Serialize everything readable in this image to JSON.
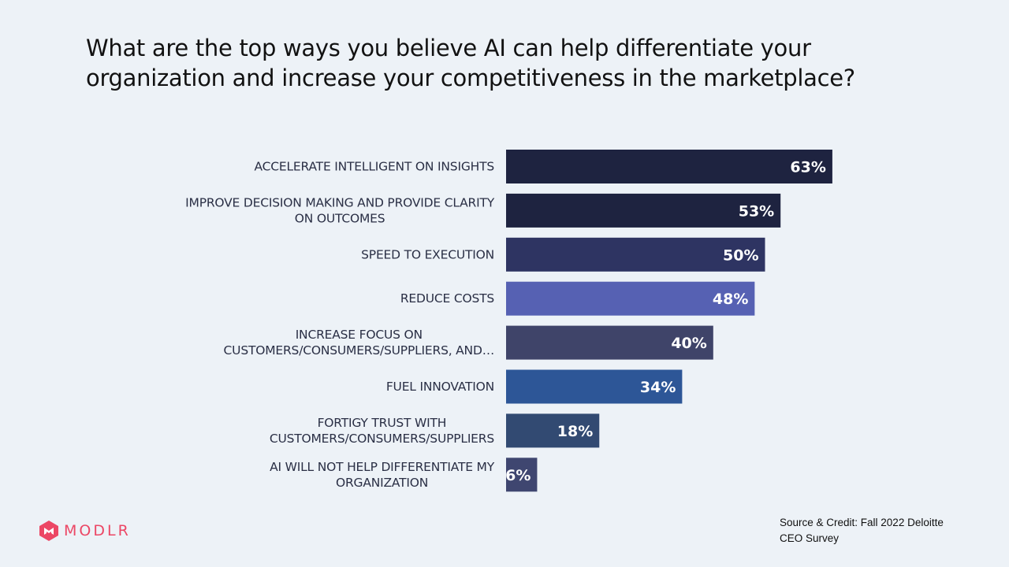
{
  "title_lines": [
    "What are the top ways you believe AI can help differentiate your",
    "organization and increase your competitiveness in the marketplace?"
  ],
  "brand": {
    "name": "MODLR",
    "color": "#ec4765"
  },
  "source_lines": [
    "Source & Credit:  Fall 2022 Deloitte",
    "CEO Survey"
  ],
  "chart_data": {
    "type": "bar",
    "orientation": "horizontal",
    "categories": [
      [
        "ACCELERATE INTELLIGENT ON INSIGHTS"
      ],
      [
        "IMPROVE DECISION MAKING AND PROVIDE CLARITY",
        "ON OUTCOMES"
      ],
      [
        "SPEED TO EXECUTION"
      ],
      [
        "REDUCE COSTS"
      ],
      [
        "INCREASE FOCUS ON",
        "CUSTOMERS/CONSUMERS/SUPPLIERS, AND…"
      ],
      [
        "FUEL INNOVATION"
      ],
      [
        "FORTIGY TRUST WITH",
        "CUSTOMERS/CONSUMERS/SUPPLIERS"
      ],
      [
        "AI WILL NOT HELP DIFFERENTIATE MY",
        "ORGANIZATION"
      ]
    ],
    "values": [
      63,
      53,
      50,
      48,
      40,
      34,
      18,
      6
    ],
    "value_labels": [
      "63%",
      "53%",
      "50%",
      "48%",
      "40%",
      "34%",
      "18%",
      "6%"
    ],
    "colors": [
      "#1e2340",
      "#1e2340",
      "#2e3462",
      "#5661b3",
      "#3f4469",
      "#2d5697",
      "#324a72",
      "#3f4670"
    ],
    "xlim": [
      0,
      100
    ],
    "grid": false,
    "legend": "none"
  }
}
